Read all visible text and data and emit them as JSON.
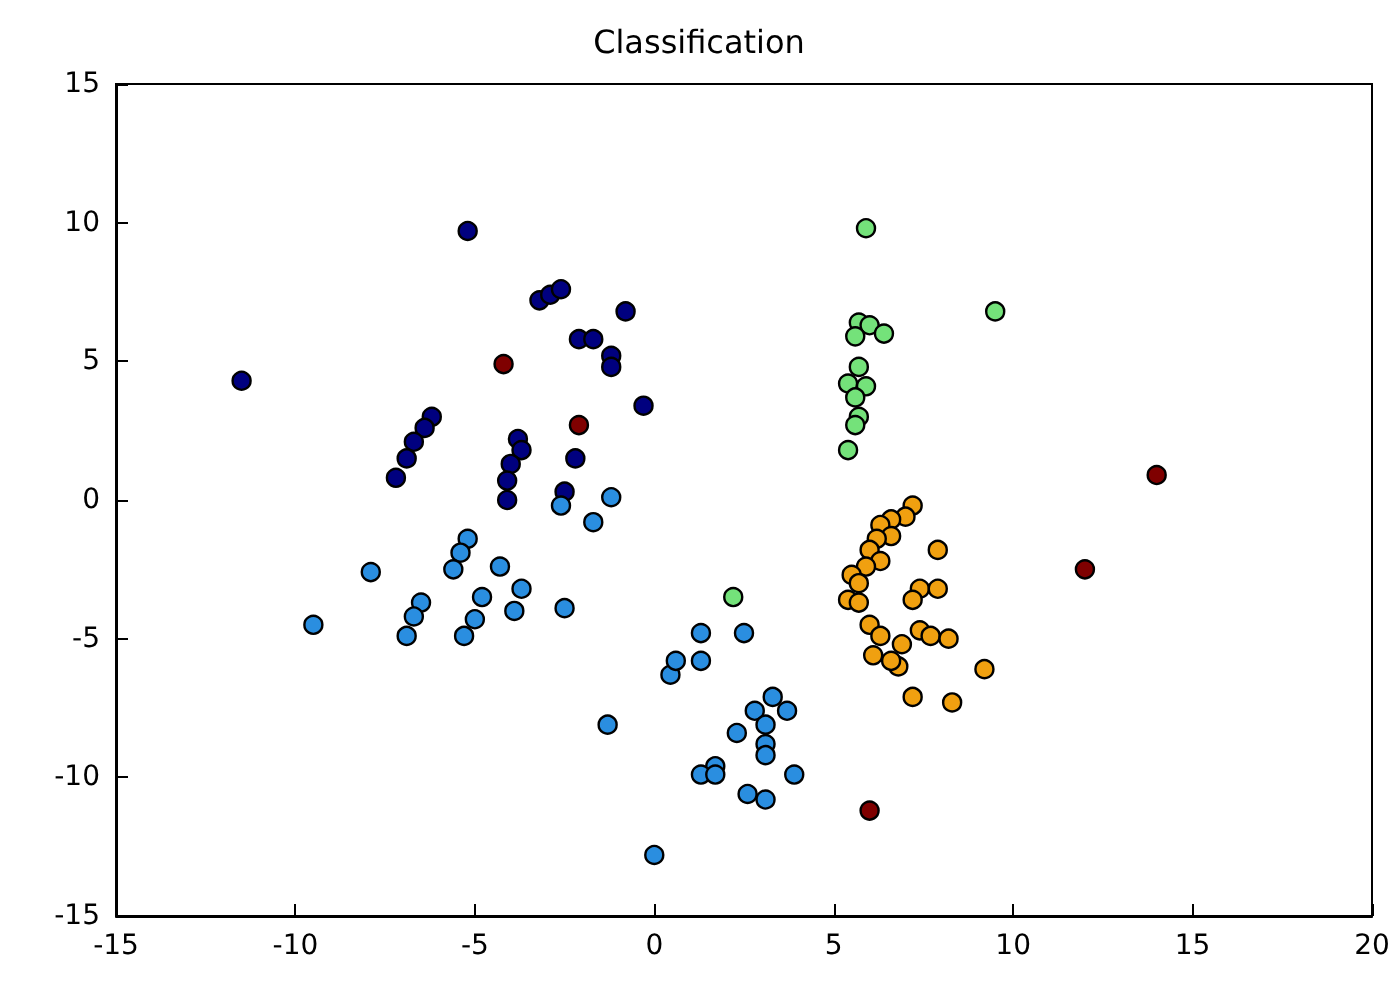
{
  "chart_data": {
    "type": "scatter",
    "title": "Classification",
    "marker": "circle",
    "xlim": [
      -15,
      20
    ],
    "xticks": [
      -15,
      -10,
      -5,
      0,
      5,
      10,
      15,
      20
    ],
    "ylim": [
      -15,
      15
    ],
    "yticks": [
      -15,
      -10,
      -5,
      0,
      5,
      10,
      15
    ],
    "series": [
      {
        "color": "#00007f",
        "x": [
          -11.5,
          -5.2,
          -3.2,
          -2.9,
          -2.6,
          -0.8,
          -2.1,
          -1.7,
          -1.2,
          -1.2,
          -0.3,
          -6.2,
          -6.4,
          -6.7,
          -6.9,
          -7.2,
          -3.8,
          -3.7,
          -4.0,
          -4.1,
          -4.1,
          -2.2,
          -2.5
        ],
        "values": [
          4.3,
          9.7,
          7.2,
          7.4,
          7.6,
          6.8,
          5.8,
          5.8,
          5.2,
          4.8,
          3.4,
          3.0,
          2.6,
          2.1,
          1.5,
          0.8,
          2.2,
          1.8,
          1.3,
          0.7,
          0.0,
          1.5,
          0.3
        ]
      },
      {
        "color": "#2a8ee0",
        "x": [
          -2.6,
          -1.2,
          -1.7,
          -5.2,
          -5.4,
          -5.6,
          -7.9,
          -4.3,
          -3.7,
          -4.8,
          -5.0,
          -5.3,
          -3.9,
          -2.5,
          -6.5,
          -6.7,
          -6.9,
          -9.5,
          -1.3,
          0,
          0.45,
          0.6,
          1.3,
          1.3,
          2.5,
          3.3,
          2.8,
          3.1,
          3.7,
          2.3,
          3.1,
          3.1,
          1.7,
          1.3,
          1.7,
          3.9,
          2.6,
          3.1
        ],
        "values": [
          -0.2,
          0.1,
          -0.8,
          -1.4,
          -1.9,
          -2.5,
          -2.6,
          -2.4,
          -3.2,
          -3.5,
          -4.3,
          -4.9,
          -4.0,
          -3.9,
          -3.7,
          -4.2,
          -4.9,
          -4.5,
          -8.1,
          -12.8,
          -6.3,
          -5.8,
          -4.8,
          -5.8,
          -4.8,
          -7.1,
          -7.6,
          -8.1,
          -7.6,
          -8.4,
          -8.8,
          -9.2,
          -9.6,
          -9.9,
          -9.9,
          -9.9,
          -10.6,
          -10.8
        ]
      },
      {
        "color": "#74e27a",
        "x": [
          2.2,
          9.5,
          5.7,
          6.0,
          6.4,
          5.6,
          5.7,
          5.4,
          5.9,
          5.6,
          5.7,
          5.6,
          5.4,
          5.9
        ],
        "values": [
          -3.5,
          6.8,
          6.4,
          6.3,
          6.0,
          5.9,
          4.8,
          4.2,
          4.1,
          3.7,
          3.0,
          2.7,
          1.8,
          9.8
        ]
      },
      {
        "color": "#f0a010",
        "x": [
          7.2,
          7.0,
          6.6,
          6.3,
          6.6,
          6.2,
          6.0,
          6.3,
          5.9,
          5.5,
          5.7,
          7.9,
          5.4,
          7.4,
          5.7,
          6.0,
          7.2,
          7.9,
          7.4,
          6.3,
          6.9,
          7.7,
          8.2,
          6.1,
          6.8,
          9.2,
          7.2,
          8.3,
          6.6
        ],
        "values": [
          -0.2,
          -0.6,
          -0.7,
          -0.9,
          -1.3,
          -1.4,
          -1.8,
          -2.2,
          -2.4,
          -2.7,
          -3.0,
          -1.8,
          -3.6,
          -3.2,
          -3.7,
          -4.5,
          -3.6,
          -3.2,
          -4.7,
          -4.9,
          -5.2,
          -4.9,
          -5.0,
          -5.6,
          -6.0,
          -6.1,
          -7.1,
          -7.3,
          -5.8
        ]
      },
      {
        "color": "#7f0000",
        "x": [
          -4.2,
          -2.1,
          6.0,
          14.0,
          12.0
        ],
        "values": [
          4.9,
          2.7,
          -11.2,
          0.9,
          -2.5
        ]
      }
    ]
  }
}
